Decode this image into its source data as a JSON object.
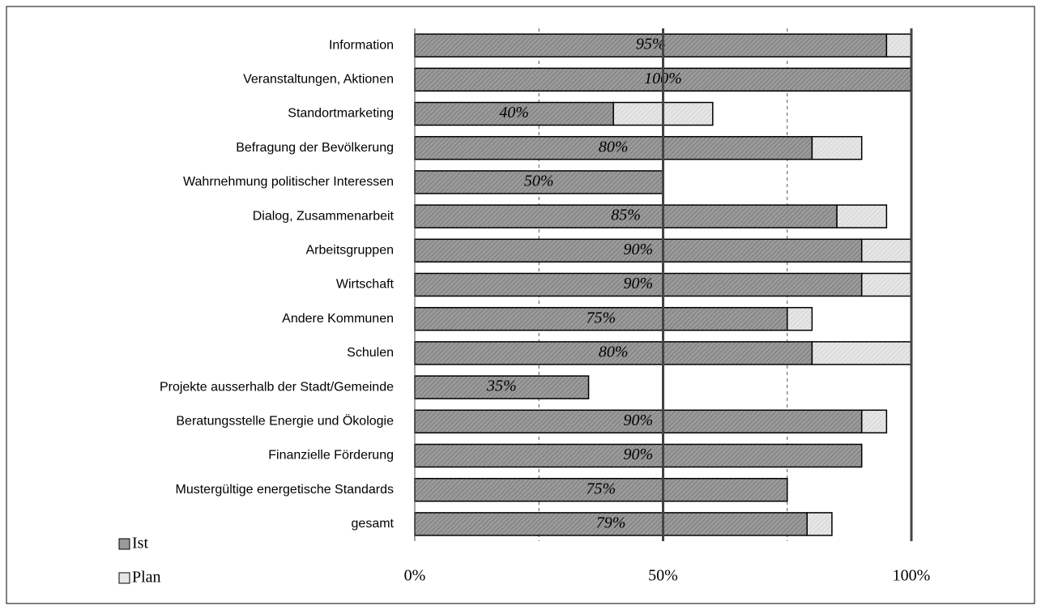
{
  "chart_data": {
    "type": "stacked-bar-horizontal",
    "categories": [
      "Information",
      "Veranstaltungen, Aktionen",
      "Standortmarketing",
      "Befragung der Bevölkerung",
      "Wahrnehmung politischer Interessen",
      "Dialog, Zusammenarbeit",
      "Arbeitsgruppen",
      "Wirtschaft",
      "Andere Kommunen",
      "Schulen",
      "Projekte ausserhalb der Stadt/Gemeinde",
      "Beratungsstelle Energie und Ökologie",
      "Finanzielle Förderung",
      "Mustergültige energetische Standards",
      "gesamt"
    ],
    "series": [
      {
        "name": "Ist",
        "color": "#9a9a9a",
        "values": [
          95,
          100,
          40,
          80,
          50,
          85,
          90,
          90,
          75,
          80,
          35,
          90,
          90,
          75,
          79
        ],
        "value_labels": [
          "95%",
          "100%",
          "40%",
          "80%",
          "50%",
          "85%",
          "90%",
          "90%",
          "75%",
          "80%",
          "35%",
          "90%",
          "90%",
          "75%",
          "79%"
        ]
      },
      {
        "name": "Plan",
        "color": "#e6e6e6",
        "values": [
          5,
          0,
          20,
          10,
          0,
          10,
          10,
          10,
          5,
          20,
          0,
          5,
          0,
          0,
          5
        ]
      }
    ],
    "xlim": [
      0,
      100
    ],
    "xticks": [
      {
        "value": 0,
        "label": "0%"
      },
      {
        "value": 50,
        "label": "50%"
      },
      {
        "value": 100,
        "label": "100%"
      }
    ],
    "minor_xticks": [
      25,
      75
    ],
    "grid": true,
    "legend": "bottom-left"
  }
}
